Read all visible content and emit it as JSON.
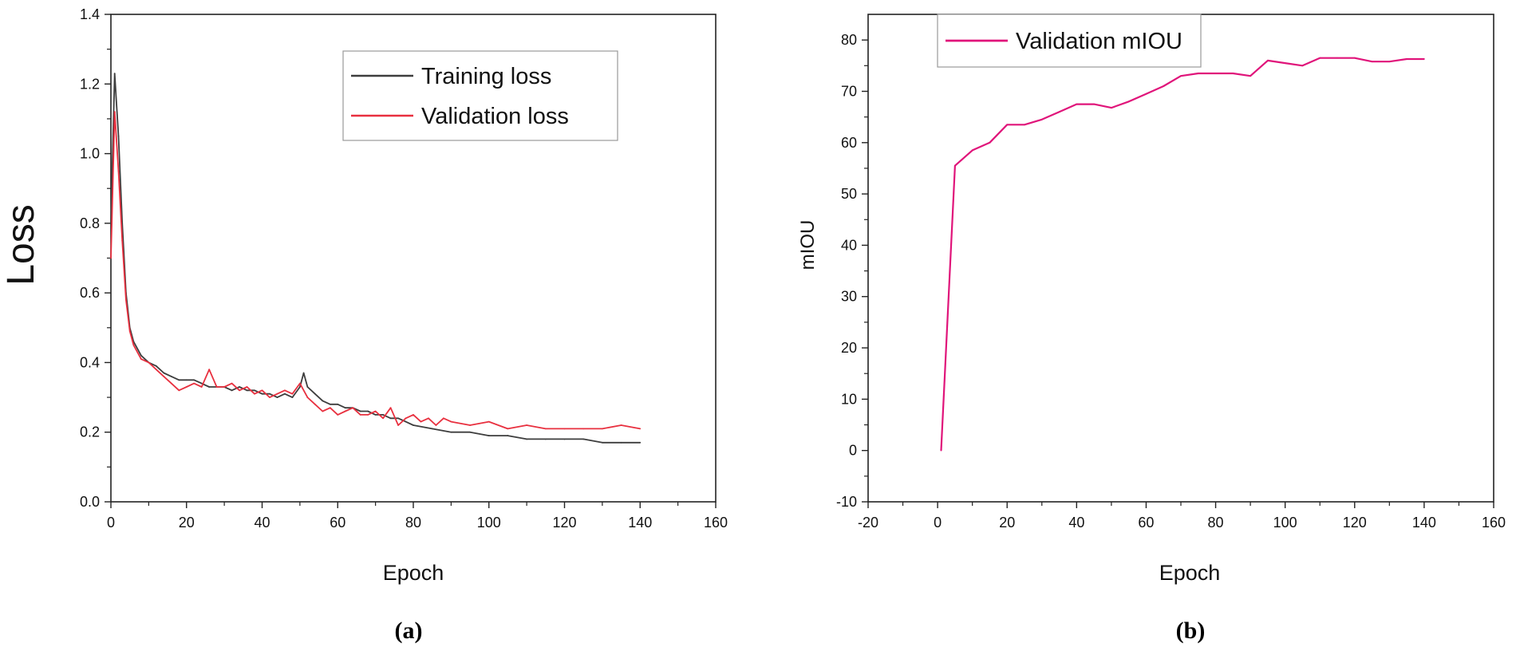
{
  "chart_data": [
    {
      "type": "line",
      "panel_caption": "(a)",
      "title": "",
      "xlabel": "Epoch",
      "ylabel": "Loss",
      "xlim": [
        0,
        160
      ],
      "ylim": [
        0.0,
        1.4
      ],
      "xticks": [
        "0",
        "20",
        "40",
        "60",
        "80",
        "100",
        "120",
        "140",
        "160"
      ],
      "yticks": [
        "0.0",
        "0.2",
        "0.4",
        "0.6",
        "0.8",
        "1.0",
        "1.2",
        "1.4"
      ],
      "grid": false,
      "legend_position": "top-right",
      "series": [
        {
          "name": "Training loss",
          "color": "#3d3d3d",
          "x": [
            0,
            1,
            2,
            3,
            4,
            5,
            6,
            8,
            10,
            12,
            14,
            16,
            18,
            20,
            22,
            24,
            26,
            28,
            30,
            32,
            34,
            36,
            38,
            40,
            42,
            44,
            46,
            48,
            50,
            51,
            52,
            54,
            56,
            58,
            60,
            62,
            64,
            66,
            68,
            70,
            72,
            74,
            76,
            78,
            80,
            85,
            90,
            95,
            100,
            105,
            110,
            115,
            120,
            125,
            130,
            135,
            140
          ],
          "values": [
            0.8,
            1.23,
            1.05,
            0.8,
            0.6,
            0.5,
            0.46,
            0.42,
            0.4,
            0.39,
            0.37,
            0.36,
            0.35,
            0.35,
            0.35,
            0.34,
            0.33,
            0.33,
            0.33,
            0.32,
            0.33,
            0.32,
            0.32,
            0.31,
            0.31,
            0.3,
            0.31,
            0.3,
            0.33,
            0.37,
            0.33,
            0.31,
            0.29,
            0.28,
            0.28,
            0.27,
            0.27,
            0.26,
            0.26,
            0.25,
            0.25,
            0.24,
            0.24,
            0.23,
            0.22,
            0.21,
            0.2,
            0.2,
            0.19,
            0.19,
            0.18,
            0.18,
            0.18,
            0.18,
            0.17,
            0.17,
            0.17
          ]
        },
        {
          "name": "Validation loss",
          "color": "#e8303f",
          "x": [
            0,
            1,
            2,
            3,
            4,
            5,
            6,
            8,
            10,
            12,
            14,
            16,
            18,
            20,
            22,
            24,
            26,
            28,
            30,
            32,
            34,
            36,
            38,
            40,
            42,
            44,
            46,
            48,
            50,
            52,
            54,
            56,
            58,
            60,
            62,
            64,
            66,
            68,
            70,
            72,
            74,
            76,
            78,
            80,
            82,
            84,
            86,
            88,
            90,
            95,
            100,
            105,
            110,
            115,
            120,
            125,
            130,
            135,
            140
          ],
          "values": [
            0.7,
            1.12,
            0.95,
            0.75,
            0.58,
            0.49,
            0.45,
            0.41,
            0.4,
            0.38,
            0.36,
            0.34,
            0.32,
            0.33,
            0.34,
            0.33,
            0.38,
            0.33,
            0.33,
            0.34,
            0.32,
            0.33,
            0.31,
            0.32,
            0.3,
            0.31,
            0.32,
            0.31,
            0.34,
            0.3,
            0.28,
            0.26,
            0.27,
            0.25,
            0.26,
            0.27,
            0.25,
            0.25,
            0.26,
            0.24,
            0.27,
            0.22,
            0.24,
            0.25,
            0.23,
            0.24,
            0.22,
            0.24,
            0.23,
            0.22,
            0.23,
            0.21,
            0.22,
            0.21,
            0.21,
            0.21,
            0.21,
            0.22,
            0.21
          ]
        }
      ]
    },
    {
      "type": "line",
      "panel_caption": "(b)",
      "title": "",
      "xlabel": "Epoch",
      "ylabel": "mIOU",
      "xlim": [
        -20,
        160
      ],
      "ylim": [
        -10,
        85
      ],
      "xticks": [
        "-20",
        "0",
        "20",
        "40",
        "60",
        "80",
        "100",
        "120",
        "140",
        "160"
      ],
      "yticks": [
        "-10",
        "0",
        "10",
        "20",
        "30",
        "40",
        "50",
        "60",
        "70",
        "80"
      ],
      "grid": false,
      "legend_position": "top-left",
      "series": [
        {
          "name": "Validation mIOU",
          "color": "#e0147a",
          "x": [
            1,
            5,
            10,
            15,
            20,
            25,
            30,
            35,
            40,
            45,
            50,
            55,
            60,
            65,
            70,
            75,
            80,
            85,
            90,
            95,
            100,
            105,
            110,
            115,
            120,
            125,
            130,
            135,
            140
          ],
          "values": [
            0,
            55.5,
            58.5,
            60,
            63.5,
            63.5,
            64.5,
            66,
            67.5,
            67.5,
            66.8,
            68,
            69.5,
            71,
            73,
            73.5,
            73.5,
            73.5,
            73,
            76,
            75.5,
            75,
            76.5,
            76.5,
            76.5,
            75.8,
            75.8,
            76.3,
            76.3
          ]
        }
      ]
    }
  ]
}
